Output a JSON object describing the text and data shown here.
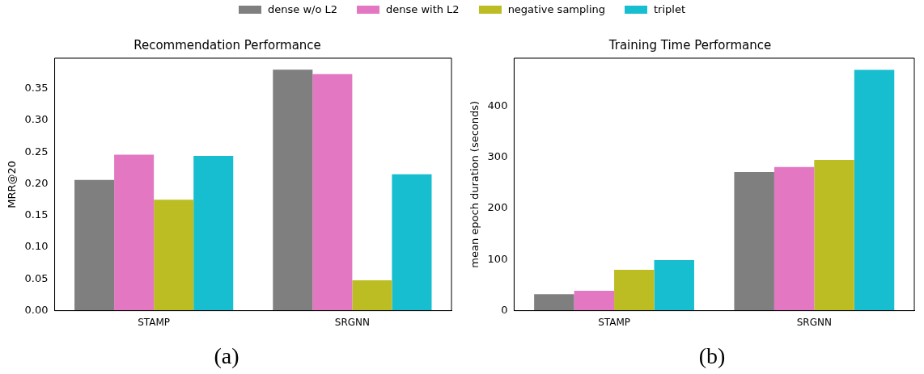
{
  "chart_data": [
    {
      "type": "bar",
      "title": "Recommendation Performance",
      "ylabel": "MRR@20",
      "categories": [
        "STAMP",
        "SRGNN"
      ],
      "series": [
        {
          "name": "dense w/o L2",
          "color": "#7f7f7f",
          "values": [
            0.206,
            0.38
          ]
        },
        {
          "name": "dense with L2",
          "color": "#e377c2",
          "values": [
            0.246,
            0.373
          ]
        },
        {
          "name": "negative sampling",
          "color": "#bcbd22",
          "values": [
            0.175,
            0.048
          ]
        },
        {
          "name": "triplet",
          "color": "#17becf",
          "values": [
            0.244,
            0.215
          ]
        }
      ],
      "ylim": [
        0,
        0.398
      ],
      "yticks": [
        {
          "value": 0,
          "label": "0.00"
        },
        {
          "value": 0.05,
          "label": "0.05"
        },
        {
          "value": 0.1,
          "label": "0.10"
        },
        {
          "value": 0.15,
          "label": "0.15"
        },
        {
          "value": 0.2,
          "label": "0.20"
        },
        {
          "value": 0.25,
          "label": "0.25"
        },
        {
          "value": 0.3,
          "label": "0.30"
        },
        {
          "value": 0.35,
          "label": "0.35"
        }
      ],
      "grid": false,
      "legend": "top",
      "annotations": [
        "(a)"
      ]
    },
    {
      "type": "bar",
      "title": "Training Time Performance",
      "ylabel": "mean epoch duration (seconds)",
      "categories": [
        "STAMP",
        "SRGNN"
      ],
      "series": [
        {
          "color": "#7f7f7f",
          "values": [
            32,
            271
          ]
        },
        {
          "color": "#e377c2",
          "values": [
            39,
            281
          ]
        },
        {
          "color": "#bcbd22",
          "values": [
            80,
            295
          ]
        },
        {
          "color": "#17becf",
          "values": [
            99,
            471
          ]
        }
      ],
      "ylim": [
        0,
        494
      ],
      "yticks": [
        0,
        100,
        200,
        300,
        400
      ],
      "grid": false,
      "legend": false,
      "annotations": [
        "(b)"
      ]
    }
  ]
}
